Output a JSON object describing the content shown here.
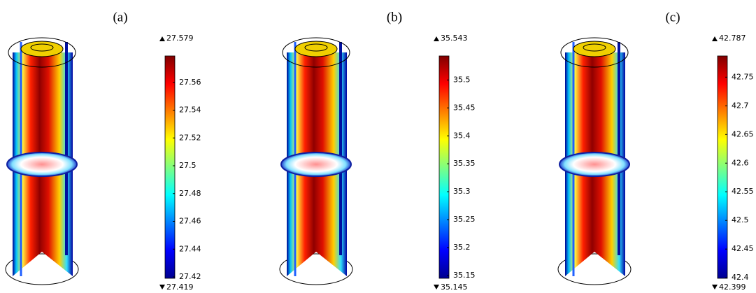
{
  "panels": [
    {
      "label": "(a)",
      "colorbar": {
        "max": 27.579,
        "min": 27.419,
        "ticks": [
          27.42,
          27.44,
          27.46,
          27.48,
          27.5,
          27.52,
          27.54,
          27.56
        ]
      }
    },
    {
      "label": "(b)",
      "colorbar": {
        "max": 35.543,
        "min": 35.145,
        "ticks": [
          35.15,
          35.2,
          35.25,
          35.3,
          35.35,
          35.4,
          35.45,
          35.5
        ]
      }
    },
    {
      "label": "(c)",
      "colorbar": {
        "max": 42.787,
        "min": 42.399,
        "ticks": [
          42.4,
          42.45,
          42.5,
          42.55,
          42.6,
          42.65,
          42.7,
          42.75
        ]
      }
    }
  ]
}
